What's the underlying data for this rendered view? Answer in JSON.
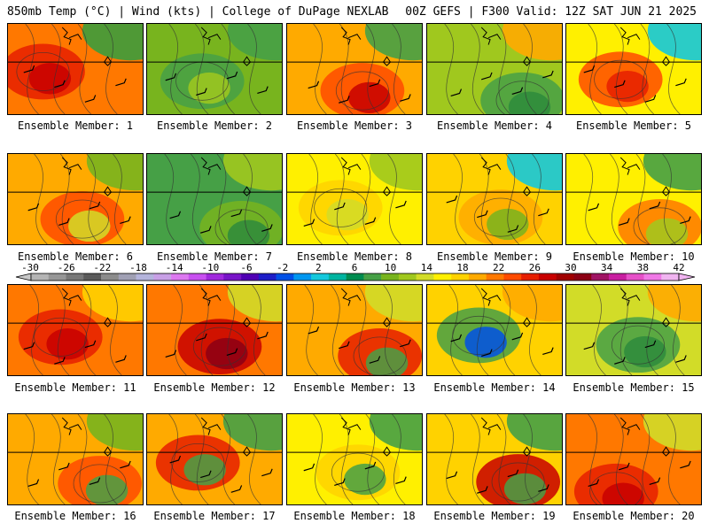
{
  "header": {
    "left": "850mb Temp (°C) | Wind (kts) | College of DuPage NEXLAB",
    "right": "00Z GEFS | F300 Valid: 12Z SAT JUN 21 2025"
  },
  "colorbar": {
    "labels": [
      "-30",
      "-26",
      "-22",
      "-18",
      "-14",
      "-10",
      "-6",
      "-2",
      "2",
      "6",
      "10",
      "14",
      "18",
      "22",
      "26",
      "30",
      "34",
      "38",
      "42"
    ],
    "colors": [
      "#b4b4b4",
      "#969696",
      "#787878",
      "#5a5a5a",
      "#8c8c8c",
      "#a0a0b4",
      "#b4b4dc",
      "#c8a0e6",
      "#dc78f0",
      "#c850f0",
      "#a028dc",
      "#7814c8",
      "#5000b4",
      "#1e1ec8",
      "#0050e6",
      "#0096f0",
      "#14c8dc",
      "#00b4a0",
      "#008c50",
      "#46a046",
      "#78b41e",
      "#a0c81e",
      "#d2dc28",
      "#fff000",
      "#ffd200",
      "#ffaa00",
      "#ff7800",
      "#ff4b00",
      "#e61e00",
      "#c80000",
      "#a00000",
      "#8c0014",
      "#a01464",
      "#c81ea0",
      "#e650c8",
      "#f078e6",
      "#f0b4f0"
    ]
  },
  "members": [
    {
      "label": "Ensemble Member: 1",
      "base": "#ff7800",
      "blobs": [
        "#e61e00",
        "#c80000"
      ],
      "corner": "#3c9c3c"
    },
    {
      "label": "Ensemble Member: 2",
      "base": "#78b41e",
      "blobs": [
        "#46a046",
        "#a0c81e"
      ],
      "corner": "#46a046"
    },
    {
      "label": "Ensemble Member: 3",
      "base": "#ffaa00",
      "blobs": [
        "#ff4b00",
        "#c80000"
      ],
      "corner": "#46a046"
    },
    {
      "label": "Ensemble Member: 4",
      "base": "#a0c81e",
      "blobs": [
        "#46a046",
        "#2e8b3c"
      ],
      "corner": "#ffaa00"
    },
    {
      "label": "Ensemble Member: 5",
      "base": "#fff000",
      "blobs": [
        "#ff4b00",
        "#e61e00"
      ],
      "corner": "#14c8dc"
    },
    {
      "label": "Ensemble Member: 6",
      "base": "#ffaa00",
      "blobs": [
        "#ff4b00",
        "#d2dc28"
      ],
      "corner": "#78b41e"
    },
    {
      "label": "Ensemble Member: 7",
      "base": "#46a046",
      "blobs": [
        "#78b41e",
        "#2e8b3c"
      ],
      "corner": "#a0c81e"
    },
    {
      "label": "Ensemble Member: 8",
      "base": "#fff000",
      "blobs": [
        "#ffd200",
        "#d2dc28"
      ],
      "corner": "#a0c81e"
    },
    {
      "label": "Ensemble Member: 9",
      "base": "#ffd200",
      "blobs": [
        "#ffaa00",
        "#78b41e"
      ],
      "corner": "#14c8dc"
    },
    {
      "label": "Ensemble Member: 10",
      "base": "#fff000",
      "blobs": [
        "#ff7800",
        "#a0c81e"
      ],
      "corner": "#46a046"
    },
    {
      "label": "Ensemble Member: 11",
      "base": "#ff7800",
      "blobs": [
        "#e61e00",
        "#c80000"
      ],
      "corner": "#ffd200"
    },
    {
      "label": "Ensemble Member: 12",
      "base": "#ff7800",
      "blobs": [
        "#c80000",
        "#8c0014"
      ],
      "corner": "#d2dc28"
    },
    {
      "label": "Ensemble Member: 13",
      "base": "#ffaa00",
      "blobs": [
        "#e61e00",
        "#46a046"
      ],
      "corner": "#d2dc28"
    },
    {
      "label": "Ensemble Member: 14",
      "base": "#ffd200",
      "blobs": [
        "#46a046",
        "#0050e6"
      ],
      "corner": "#ffaa00"
    },
    {
      "label": "Ensemble Member: 15",
      "base": "#d2dc28",
      "blobs": [
        "#46a046",
        "#2e8b3c"
      ],
      "corner": "#ffaa00"
    },
    {
      "label": "Ensemble Member: 16",
      "base": "#ffaa00",
      "blobs": [
        "#ff4b00",
        "#46a046"
      ],
      "corner": "#78b41e"
    },
    {
      "label": "Ensemble Member: 17",
      "base": "#ffaa00",
      "blobs": [
        "#e61e00",
        "#46a046"
      ],
      "corner": "#46a046"
    },
    {
      "label": "Ensemble Member: 18",
      "base": "#fff000",
      "blobs": [
        "#ffd200",
        "#46a046"
      ],
      "corner": "#46a046"
    },
    {
      "label": "Ensemble Member: 19",
      "base": "#ffd200",
      "blobs": [
        "#c80000",
        "#46a046"
      ],
      "corner": "#46a046"
    },
    {
      "label": "Ensemble Member: 20",
      "base": "#ff7800",
      "blobs": [
        "#e61e00",
        "#c80000"
      ],
      "corner": "#d2dc28"
    }
  ]
}
